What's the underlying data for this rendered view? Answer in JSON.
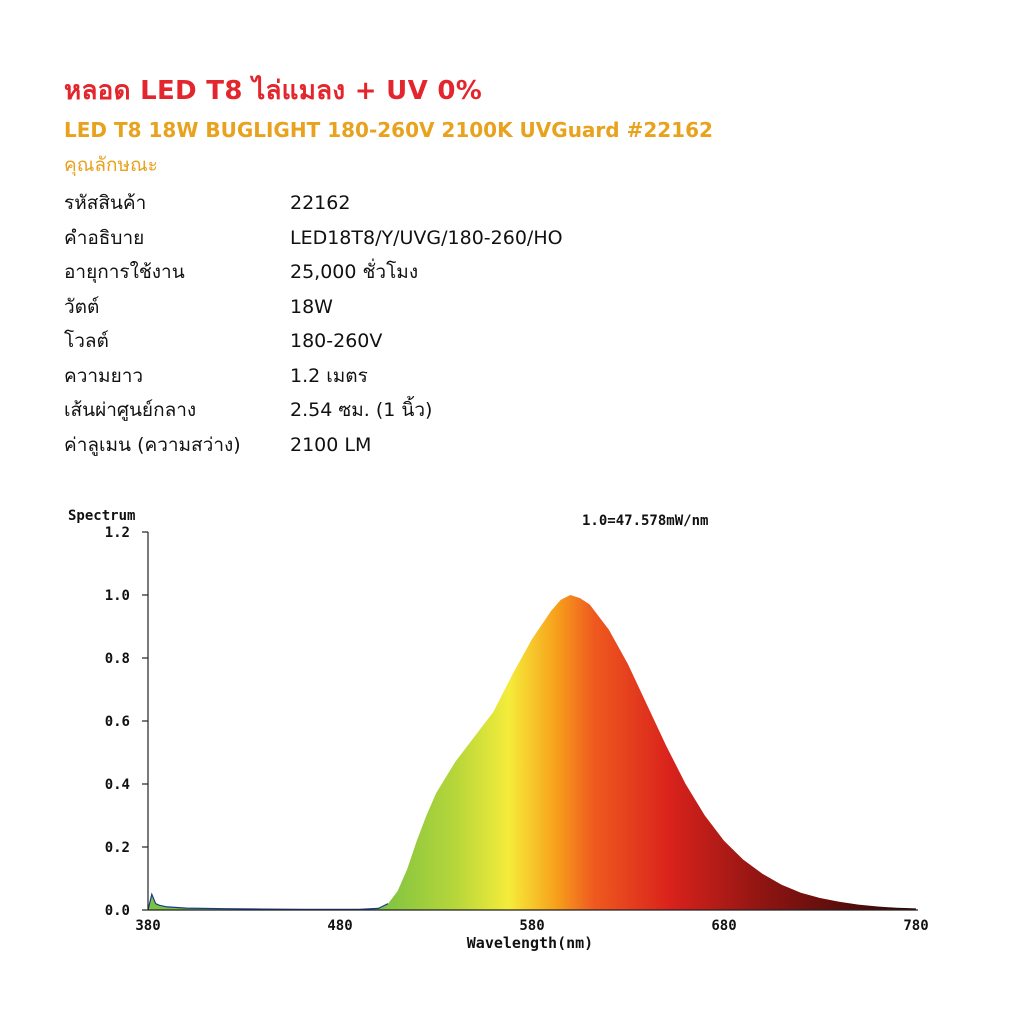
{
  "header": {
    "title": "หลอด LED T8 ไล่แมลง + UV 0%",
    "subtitle": "LED T8 18W BUGLIGHT 180-260V 2100K UVGuard #22162",
    "specs_heading": "คุณลักษณะ"
  },
  "specs": [
    {
      "label": "รหัสสินค้า",
      "value": "22162"
    },
    {
      "label": "คำอธิบาย",
      "value": "LED18T8/Y/UVG/180-260/HO"
    },
    {
      "label": "อายุการใช้งาน",
      "value": "25,000 ชั่วโมง"
    },
    {
      "label": "วัตต์",
      "value": "18W"
    },
    {
      "label": "โวลต์",
      "value": "180-260V"
    },
    {
      "label": "ความยาว",
      "value": "1.2 เมตร"
    },
    {
      "label": "เส้นผ่าศูนย์กลาง",
      "value": "2.54 ซม. (1 นิ้ว)"
    },
    {
      "label": "ค่าลูเมน (ความสว่าง)",
      "value": "2100 LM"
    }
  ],
  "chart_data": {
    "type": "area",
    "title": "Spectrum",
    "annotation": "1.0=47.578mW/nm",
    "xlabel": "Wavelength(nm)",
    "ylabel": "Spectrum",
    "xlim": [
      380,
      780
    ],
    "ylim": [
      0,
      1.2
    ],
    "xticks": [
      "380",
      "480",
      "580",
      "680",
      "780"
    ],
    "yticks": [
      "0.0",
      "0.2",
      "0.4",
      "0.6",
      "0.8",
      "1.0",
      "1.2"
    ],
    "grid": false,
    "series": [
      {
        "x": [
          380,
          382,
          384,
          386,
          390,
          400,
          420,
          440,
          460,
          480,
          490,
          500,
          505,
          510,
          515,
          520,
          525,
          530,
          540,
          550,
          560,
          570,
          580,
          590,
          595,
          600,
          605,
          610,
          620,
          630,
          640,
          650,
          660,
          670,
          680,
          690,
          700,
          710,
          720,
          730,
          740,
          750,
          760,
          770,
          780
        ],
        "values": [
          0.0,
          0.05,
          0.02,
          0.015,
          0.01,
          0.006,
          0.004,
          0.003,
          0.002,
          0.002,
          0.002,
          0.005,
          0.02,
          0.06,
          0.13,
          0.22,
          0.3,
          0.37,
          0.47,
          0.55,
          0.63,
          0.75,
          0.86,
          0.95,
          0.985,
          1.0,
          0.99,
          0.97,
          0.89,
          0.78,
          0.65,
          0.52,
          0.4,
          0.3,
          0.22,
          0.16,
          0.115,
          0.08,
          0.055,
          0.038,
          0.026,
          0.017,
          0.011,
          0.007,
          0.005
        ]
      }
    ]
  }
}
